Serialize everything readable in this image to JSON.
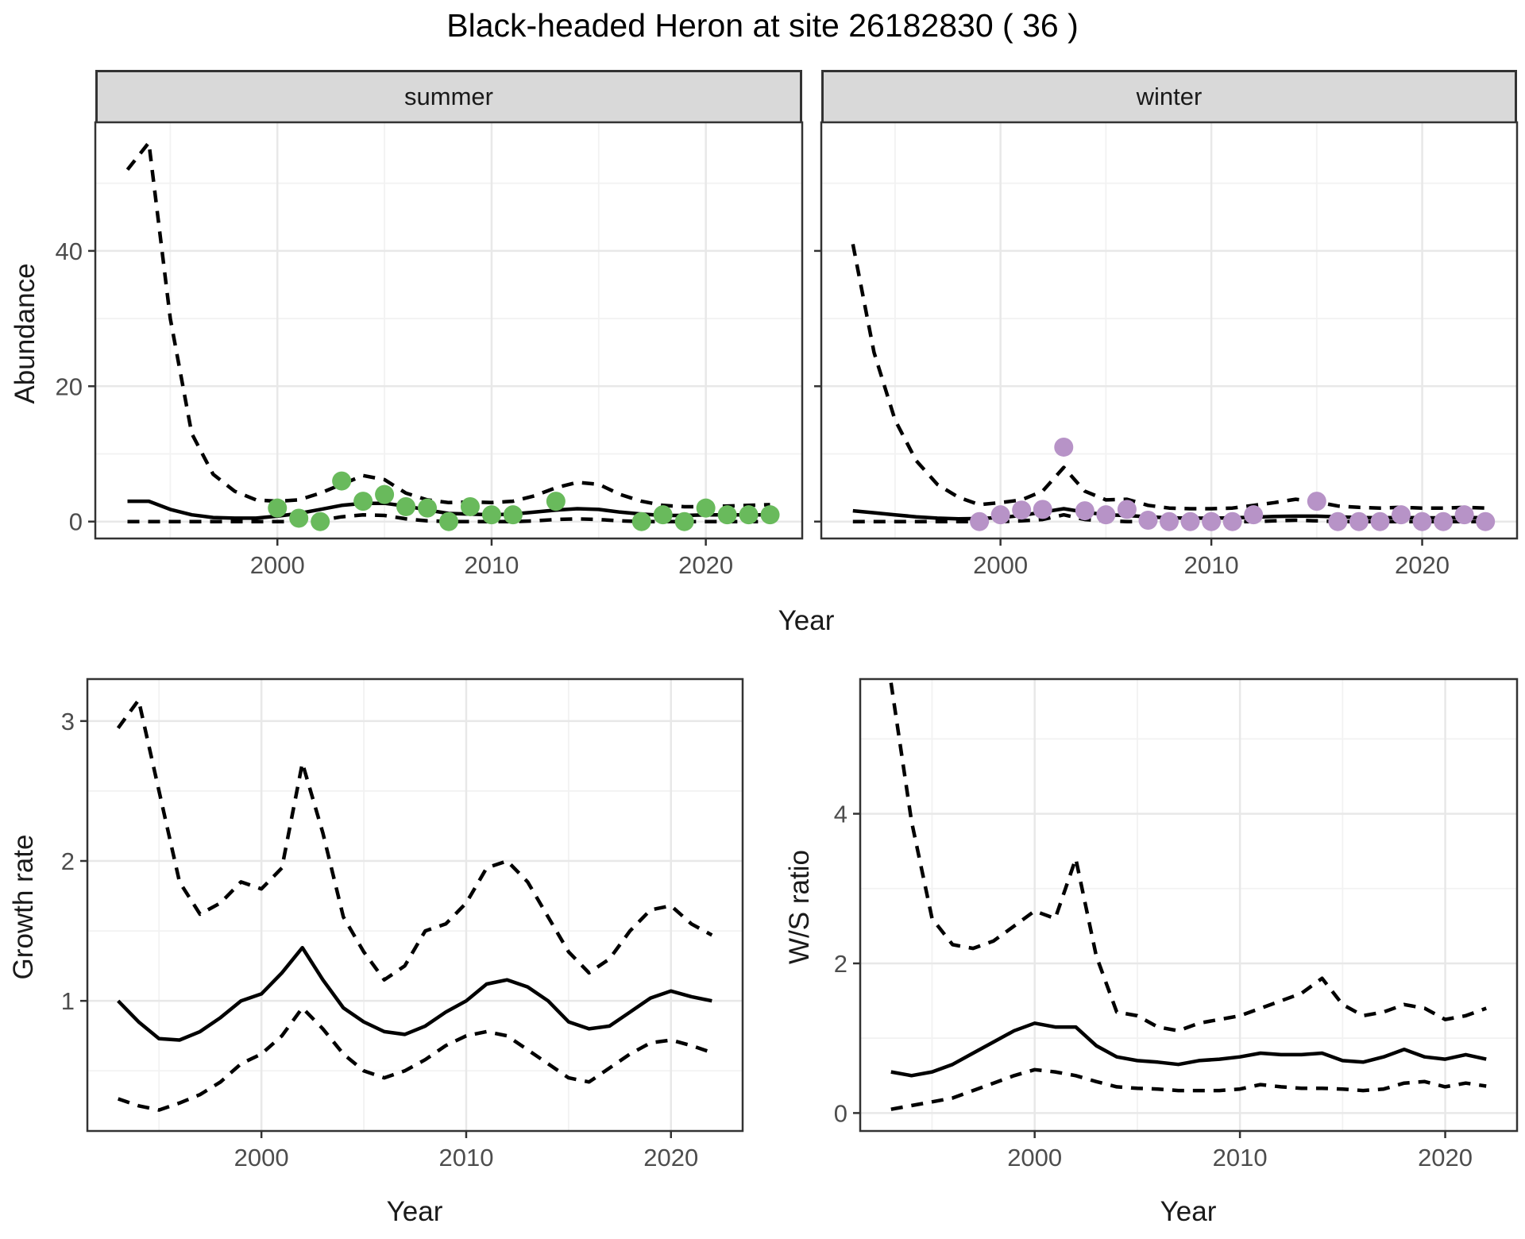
{
  "title": "Black-headed Heron at site 26182830 ( 36 )",
  "facets": {
    "summer_label": "summer",
    "winter_label": "winter"
  },
  "axis_titles": {
    "top_y": "Abundance",
    "top_x": "Year",
    "growth_y": "Growth rate",
    "growth_x": "Year",
    "ratio_y": "W/S ratio",
    "ratio_x": "Year"
  },
  "colors": {
    "summer_point": "#69ba5c",
    "winter_point": "#b793c7",
    "fit_line": "#000000",
    "ci_line": "#000000",
    "strip_bg": "#d9d9d9",
    "panel_bg": "#ffffff",
    "panel_border": "#333333",
    "grid_major": "#e8e8e8",
    "grid_minor": "#f2f2f2",
    "tick_label": "#4d4d4d",
    "tick_mark": "#333333"
  },
  "chart_data": [
    {
      "id": "abundance-summer",
      "type": "line",
      "facet": "summer",
      "xlabel": "Year",
      "ylabel": "Abundance",
      "x": [
        1993,
        1994,
        1995,
        1996,
        1997,
        1998,
        1999,
        2000,
        2001,
        2002,
        2003,
        2004,
        2005,
        2006,
        2007,
        2008,
        2009,
        2010,
        2011,
        2012,
        2013,
        2014,
        2015,
        2016,
        2017,
        2018,
        2019,
        2020,
        2021,
        2022,
        2023
      ],
      "series": [
        {
          "name": "fit",
          "style": "solid",
          "values": [
            3.0,
            3.0,
            1.8,
            1.0,
            0.6,
            0.5,
            0.5,
            0.8,
            1.2,
            1.8,
            2.4,
            2.7,
            2.7,
            2.3,
            1.7,
            1.2,
            1.1,
            1.0,
            1.1,
            1.4,
            1.7,
            1.9,
            1.8,
            1.4,
            1.1,
            0.9,
            0.9,
            1.0,
            1.0,
            1.0,
            1.0
          ]
        },
        {
          "name": "upper_ci",
          "style": "dashed",
          "values": [
            52,
            56,
            30,
            13,
            7,
            4.5,
            3.2,
            3.0,
            3.2,
            4.2,
            5.5,
            6.8,
            6.2,
            4.2,
            3.2,
            2.8,
            2.9,
            2.8,
            3.0,
            3.8,
            5.0,
            5.8,
            5.5,
            4.0,
            3.0,
            2.4,
            2.2,
            2.2,
            2.3,
            2.4,
            2.5
          ]
        },
        {
          "name": "lower_ci",
          "style": "dashed",
          "values": [
            0,
            0,
            0,
            0,
            0,
            0,
            0,
            0,
            0,
            0.2,
            0.7,
            1.0,
            0.9,
            0.4,
            0.1,
            0,
            0,
            0,
            0,
            0.1,
            0.3,
            0.4,
            0.3,
            0.1,
            0,
            0,
            0,
            0,
            0,
            0,
            0
          ]
        }
      ],
      "observations": [
        [
          2000,
          2
        ],
        [
          2001,
          0.5
        ],
        [
          2002,
          0
        ],
        [
          2003,
          6
        ],
        [
          2004,
          3
        ],
        [
          2005,
          4
        ],
        [
          2006,
          2.2
        ],
        [
          2007,
          2
        ],
        [
          2008,
          0
        ],
        [
          2009,
          2.2
        ],
        [
          2010,
          1
        ],
        [
          2011,
          1
        ],
        [
          2013,
          3
        ],
        [
          2017,
          0
        ],
        [
          2018,
          1
        ],
        [
          2019,
          0
        ],
        [
          2020,
          2
        ],
        [
          2021,
          1
        ],
        [
          2022,
          1
        ],
        [
          2023,
          1
        ]
      ],
      "point_color": "#69ba5c",
      "xlim": [
        1991.5,
        2024.5
      ],
      "ylim": [
        -2.5,
        59
      ],
      "xticks": [
        2000,
        2010,
        2020
      ],
      "yticks": [
        0,
        20,
        40
      ],
      "xticks_minor": [
        1995,
        2005,
        2015
      ],
      "yticks_minor": [
        10,
        30,
        50
      ],
      "grid": true
    },
    {
      "id": "abundance-winter",
      "type": "line",
      "facet": "winter",
      "xlabel": "Year",
      "ylabel": "Abundance",
      "x": [
        1993,
        1994,
        1995,
        1996,
        1997,
        1998,
        1999,
        2000,
        2001,
        2002,
        2003,
        2004,
        2005,
        2006,
        2007,
        2008,
        2009,
        2010,
        2011,
        2012,
        2013,
        2014,
        2015,
        2016,
        2017,
        2018,
        2019,
        2020,
        2021,
        2022,
        2023
      ],
      "series": [
        {
          "name": "fit",
          "style": "solid",
          "values": [
            1.6,
            1.3,
            1.0,
            0.7,
            0.5,
            0.4,
            0.45,
            0.6,
            0.9,
            1.4,
            1.9,
            1.4,
            1.0,
            0.9,
            0.7,
            0.55,
            0.5,
            0.5,
            0.55,
            0.65,
            0.75,
            0.8,
            0.8,
            0.7,
            0.6,
            0.55,
            0.6,
            0.55,
            0.55,
            0.6,
            0.55
          ]
        },
        {
          "name": "upper_ci",
          "style": "dashed",
          "values": [
            41,
            25,
            15,
            9,
            5.5,
            3.6,
            2.5,
            2.8,
            3.2,
            4.5,
            8.0,
            4.5,
            3.2,
            3.3,
            2.4,
            2.0,
            1.9,
            1.9,
            2.0,
            2.4,
            2.8,
            3.3,
            2.9,
            2.3,
            2.1,
            2.0,
            2.1,
            2.0,
            2.0,
            2.1,
            2.0
          ]
        },
        {
          "name": "lower_ci",
          "style": "dashed",
          "values": [
            0,
            0,
            0,
            0,
            0,
            0,
            0,
            0,
            0.1,
            0.3,
            1.0,
            0.3,
            0.1,
            0,
            0,
            0,
            0,
            0,
            0,
            0,
            0.1,
            0.2,
            0.1,
            0,
            0,
            0,
            0,
            0,
            0,
            0,
            0
          ]
        }
      ],
      "observations": [
        [
          1999,
          0
        ],
        [
          2000,
          1
        ],
        [
          2001,
          1.7
        ],
        [
          2002,
          1.8
        ],
        [
          2003,
          11
        ],
        [
          2004,
          1.6
        ],
        [
          2005,
          1
        ],
        [
          2006,
          1.8
        ],
        [
          2007,
          0.2
        ],
        [
          2008,
          0
        ],
        [
          2009,
          0
        ],
        [
          2010,
          0
        ],
        [
          2011,
          0
        ],
        [
          2012,
          1
        ],
        [
          2015,
          3
        ],
        [
          2016,
          0
        ],
        [
          2017,
          0
        ],
        [
          2018,
          0
        ],
        [
          2019,
          1
        ],
        [
          2020,
          0
        ],
        [
          2021,
          0
        ],
        [
          2022,
          1
        ],
        [
          2023,
          0
        ]
      ],
      "point_color": "#b793c7",
      "xlim": [
        1991.5,
        2024.5
      ],
      "ylim": [
        -2.5,
        59
      ],
      "xticks": [
        2000,
        2010,
        2020
      ],
      "yticks": [
        0,
        20,
        40
      ],
      "xticks_minor": [
        1995,
        2005,
        2015
      ],
      "yticks_minor": [
        10,
        30,
        50
      ],
      "grid": true
    },
    {
      "id": "growth-rate",
      "type": "line",
      "xlabel": "Year",
      "ylabel": "Growth rate",
      "x": [
        1993,
        1994,
        1995,
        1996,
        1997,
        1998,
        1999,
        2000,
        2001,
        2002,
        2003,
        2004,
        2005,
        2006,
        2007,
        2008,
        2009,
        2010,
        2011,
        2012,
        2013,
        2014,
        2015,
        2016,
        2017,
        2018,
        2019,
        2020,
        2021,
        2022
      ],
      "series": [
        {
          "name": "fit",
          "style": "solid",
          "values": [
            1.0,
            0.85,
            0.73,
            0.72,
            0.78,
            0.88,
            1.0,
            1.05,
            1.2,
            1.38,
            1.15,
            0.95,
            0.85,
            0.78,
            0.76,
            0.82,
            0.92,
            1.0,
            1.12,
            1.15,
            1.1,
            1.0,
            0.85,
            0.8,
            0.82,
            0.92,
            1.02,
            1.07,
            1.03,
            1.0
          ]
        },
        {
          "name": "upper_ci",
          "style": "dashed",
          "values": [
            2.95,
            3.15,
            2.5,
            1.85,
            1.62,
            1.7,
            1.85,
            1.8,
            1.95,
            2.7,
            2.2,
            1.6,
            1.35,
            1.15,
            1.25,
            1.5,
            1.55,
            1.7,
            1.95,
            2.0,
            1.85,
            1.6,
            1.35,
            1.2,
            1.3,
            1.5,
            1.65,
            1.68,
            1.55,
            1.47
          ]
        },
        {
          "name": "lower_ci",
          "style": "dashed",
          "values": [
            0.3,
            0.25,
            0.22,
            0.27,
            0.33,
            0.42,
            0.55,
            0.62,
            0.75,
            0.95,
            0.8,
            0.62,
            0.5,
            0.45,
            0.5,
            0.58,
            0.68,
            0.75,
            0.78,
            0.75,
            0.65,
            0.55,
            0.45,
            0.42,
            0.52,
            0.62,
            0.7,
            0.72,
            0.68,
            0.63
          ]
        }
      ],
      "observations": [],
      "point_color": "#000000",
      "xlim": [
        1991.5,
        2023.5
      ],
      "ylim": [
        0.07,
        3.3
      ],
      "xticks": [
        2000,
        2010,
        2020
      ],
      "yticks": [
        1,
        2,
        3
      ],
      "xticks_minor": [
        1995,
        2005,
        2015
      ],
      "yticks_minor": [
        0.5,
        1.5,
        2.5
      ],
      "grid": true
    },
    {
      "id": "ws-ratio",
      "type": "line",
      "xlabel": "Year",
      "ylabel": "W/S ratio",
      "x": [
        1993,
        1994,
        1995,
        1996,
        1997,
        1998,
        1999,
        2000,
        2001,
        2002,
        2003,
        2004,
        2005,
        2006,
        2007,
        2008,
        2009,
        2010,
        2011,
        2012,
        2013,
        2014,
        2015,
        2016,
        2017,
        2018,
        2019,
        2020,
        2021,
        2022
      ],
      "series": [
        {
          "name": "fit",
          "style": "solid",
          "values": [
            0.55,
            0.5,
            0.55,
            0.65,
            0.8,
            0.95,
            1.1,
            1.2,
            1.15,
            1.15,
            0.9,
            0.75,
            0.7,
            0.68,
            0.65,
            0.7,
            0.72,
            0.75,
            0.8,
            0.78,
            0.78,
            0.8,
            0.7,
            0.68,
            0.75,
            0.85,
            0.75,
            0.72,
            0.78,
            0.72
          ]
        },
        {
          "name": "upper_ci",
          "style": "dashed",
          "values": [
            5.75,
            3.9,
            2.6,
            2.25,
            2.2,
            2.3,
            2.5,
            2.7,
            2.6,
            3.4,
            2.1,
            1.35,
            1.3,
            1.15,
            1.1,
            1.2,
            1.25,
            1.3,
            1.4,
            1.5,
            1.6,
            1.8,
            1.45,
            1.3,
            1.35,
            1.45,
            1.4,
            1.25,
            1.3,
            1.4
          ]
        },
        {
          "name": "lower_ci",
          "style": "dashed",
          "values": [
            0.05,
            0.1,
            0.15,
            0.2,
            0.3,
            0.4,
            0.5,
            0.58,
            0.55,
            0.5,
            0.42,
            0.35,
            0.33,
            0.32,
            0.3,
            0.3,
            0.3,
            0.32,
            0.38,
            0.35,
            0.33,
            0.33,
            0.32,
            0.3,
            0.32,
            0.4,
            0.42,
            0.35,
            0.4,
            0.36
          ]
        }
      ],
      "observations": [],
      "point_color": "#000000",
      "xlim": [
        1991.5,
        2023.5
      ],
      "ylim": [
        -0.24,
        5.8
      ],
      "xticks": [
        2000,
        2010,
        2020
      ],
      "yticks": [
        0,
        2,
        4
      ],
      "xticks_minor": [
        1995,
        2005,
        2015
      ],
      "yticks_minor": [
        1,
        3,
        5
      ],
      "grid": true
    }
  ]
}
